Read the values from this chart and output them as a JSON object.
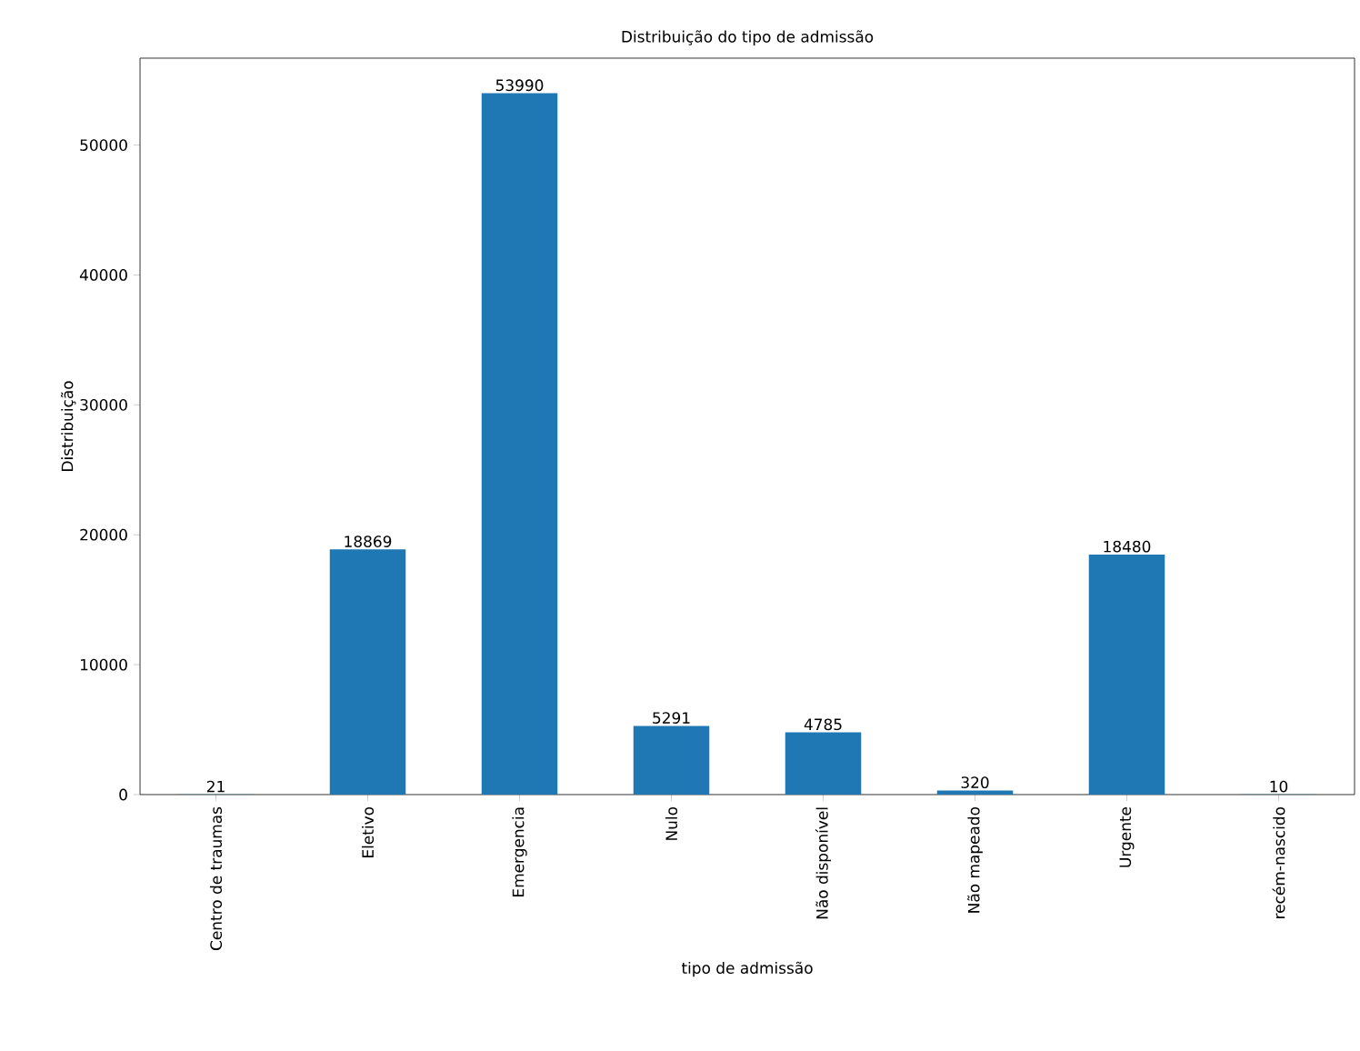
{
  "chart_data": {
    "type": "bar",
    "title": "Distribuição do tipo de admissão",
    "xlabel": "tipo de admissão",
    "ylabel": "Distribuição",
    "categories": [
      "Centro de traumas",
      "Eletivo",
      "Emergencia",
      "Nulo",
      "Não disponível",
      "Não mapeado",
      "Urgente",
      "recém-nascido"
    ],
    "values": [
      21,
      18869,
      53990,
      5291,
      4785,
      320,
      18480,
      10
    ],
    "color": "#1f77b4",
    "ylim": [
      0,
      56690
    ],
    "yticks": [
      0,
      10000,
      20000,
      30000,
      40000,
      50000
    ],
    "data_labels": true,
    "grid": false
  }
}
